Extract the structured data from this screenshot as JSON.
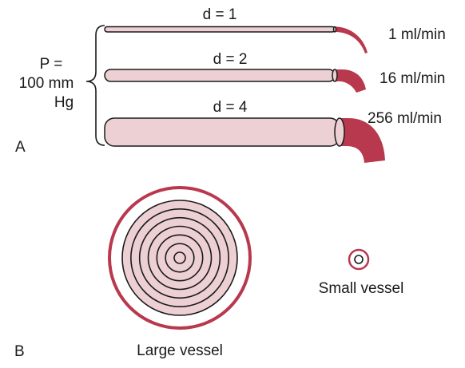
{
  "colors": {
    "vessel_fill": "#ecd0d3",
    "blood": "#b8394e",
    "outer_wall": "#b8394e",
    "line": "#1a1a1a"
  },
  "panel_a": {
    "label": "A",
    "pressure_lines": [
      "P =",
      "100 mm",
      "Hg"
    ],
    "vessels": [
      {
        "diameter_label": "d = 1",
        "flow_label": "1 ml/min",
        "diameter": 1,
        "flow_ml_min": 1
      },
      {
        "diameter_label": "d = 2",
        "flow_label": "16 ml/min",
        "diameter": 2,
        "flow_ml_min": 16
      },
      {
        "diameter_label": "d = 4",
        "flow_label": "256 ml/min",
        "diameter": 4,
        "flow_ml_min": 256
      }
    ]
  },
  "panel_b": {
    "label": "B",
    "large_vessel_label": "Large vessel",
    "small_vessel_label": "Small vessel",
    "large_vessel_ring_count": 7,
    "small_vessel_ring_count": 1
  }
}
